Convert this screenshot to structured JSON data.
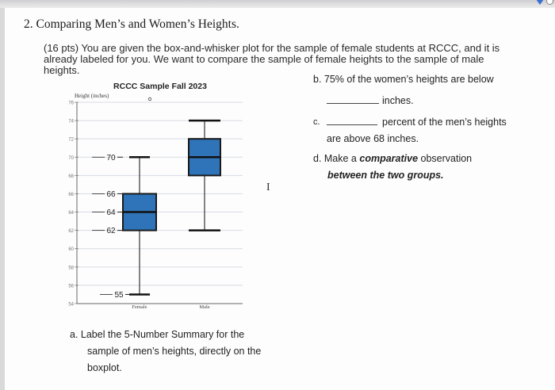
{
  "problem": {
    "heading": "2. Comparing Men’s and Women’s Heights.",
    "intro_line1": "(16 pts) You are given the box-and-whisker plot for the sample of female students at RCCC, and it is",
    "intro_line2": "already labeled for you. We want to compare the sample of female heights to the sample of male heights."
  },
  "questions": {
    "b_line1": "b.  75% of the women’s heights are below",
    "b_line2": "inches.",
    "c_letter": "c.",
    "c_line1": "percent of the men’s heights",
    "c_line2": "are above 68 inches.",
    "d_prefix": "d.  Make a ",
    "d_bold": "comparative",
    "d_suffix": " observation",
    "d_line2": "between the two groups.",
    "a_line1": "a.  Label the 5-Number Summary for the",
    "a_line2": "sample of men’s heights, directly on the",
    "a_line3": "boxplot."
  },
  "chart_data": {
    "type": "boxplot",
    "title": "RCCC Sample Fall 2023",
    "ylabel": "Height (inches)",
    "ylim": [
      54,
      76
    ],
    "yticks": [
      54,
      56,
      58,
      60,
      62,
      64,
      66,
      68,
      70,
      72,
      74,
      76
    ],
    "categories": [
      "Female",
      "Male"
    ],
    "box_color": "#2f74b8",
    "series": [
      {
        "name": "Female",
        "min": 55,
        "q1": 62,
        "median": 64,
        "q3": 66,
        "max": 70,
        "labels": [
          "70",
          "66",
          "64",
          "62",
          "55"
        ]
      },
      {
        "name": "Male",
        "min": 62,
        "q1": 68,
        "median": 70,
        "q3": 72,
        "max": 74,
        "labels": []
      }
    ]
  }
}
